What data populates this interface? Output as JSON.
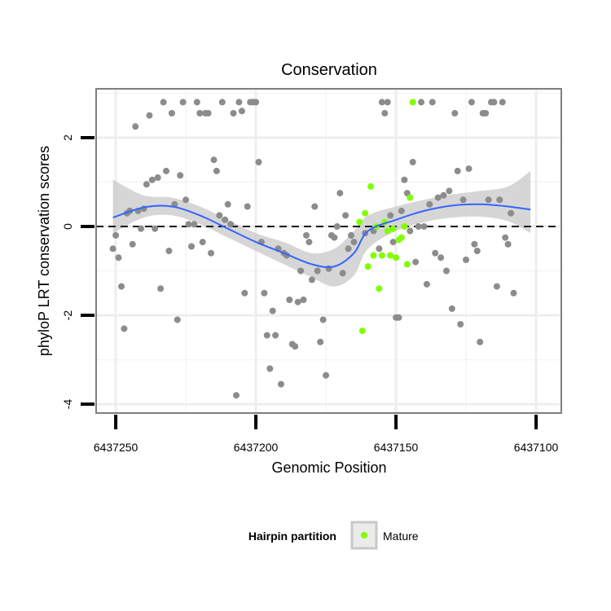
{
  "chart_data": {
    "type": "scatter",
    "title": "Conservation",
    "xlabel": "Genomic Position",
    "ylabel": "phyloP LRT conservation scores",
    "x_reversed": true,
    "xlim": [
      6437257,
      6437091
    ],
    "ylim": [
      -4.2,
      3.1
    ],
    "x_ticks": [
      {
        "value": 6437250,
        "label": "6437250"
      },
      {
        "value": 6437200,
        "label": "6437200"
      },
      {
        "value": 6437150,
        "label": "6437150"
      },
      {
        "value": 6437100,
        "label": "6437100"
      }
    ],
    "y_ticks": [
      {
        "value": 2,
        "label": "2"
      },
      {
        "value": 0,
        "label": "0"
      },
      {
        "value": -2,
        "label": "-2"
      },
      {
        "value": -4,
        "label": "-4"
      }
    ],
    "grid": true,
    "reference_line": {
      "y": 0,
      "style": "dashed",
      "color": "#000000"
    },
    "legend": {
      "title": "Hairpin partition",
      "position": "bottom",
      "entries": [
        {
          "label": "Mature",
          "color": "#7fff00"
        }
      ]
    },
    "colors": {
      "other": "#8c8c8c",
      "mature": "#7fff00",
      "smooth": "#3366ff",
      "ribbon": "#c8c8c8"
    },
    "series": [
      {
        "name": "Other",
        "points": [
          [
            6437251,
            -0.5
          ],
          [
            6437250,
            -0.2
          ],
          [
            6437249,
            -0.7
          ],
          [
            6437248,
            -1.35
          ],
          [
            6437247,
            -2.3
          ],
          [
            6437246,
            0.3
          ],
          [
            6437245,
            0.35
          ],
          [
            6437244,
            -0.4
          ],
          [
            6437243,
            2.25
          ],
          [
            6437242,
            0.35
          ],
          [
            6437241,
            -0.05
          ],
          [
            6437240,
            0.4
          ],
          [
            6437239,
            0.95
          ],
          [
            6437238,
            2.5
          ],
          [
            6437237,
            1.05
          ],
          [
            6437236,
            -0.05
          ],
          [
            6437235,
            1.1
          ],
          [
            6437234,
            -1.4
          ],
          [
            6437233,
            2.8
          ],
          [
            6437232,
            1.25
          ],
          [
            6437231,
            -0.55
          ],
          [
            6437230,
            2.55
          ],
          [
            6437229,
            0.5
          ],
          [
            6437228,
            -2.1
          ],
          [
            6437227,
            1.15
          ],
          [
            6437226,
            2.8
          ],
          [
            6437225,
            0.6
          ],
          [
            6437224,
            0.05
          ],
          [
            6437223,
            -0.45
          ],
          [
            6437222,
            0.05
          ],
          [
            6437221,
            2.8
          ],
          [
            6437220,
            2.55
          ],
          [
            6437219,
            -0.35
          ],
          [
            6437218,
            2.55
          ],
          [
            6437217,
            2.55
          ],
          [
            6437216,
            -0.6
          ],
          [
            6437215,
            1.5
          ],
          [
            6437214,
            1.25
          ],
          [
            6437213,
            0.25
          ],
          [
            6437212,
            2.8
          ],
          [
            6437211,
            0.15
          ],
          [
            6437210,
            0.5
          ],
          [
            6437209,
            0.05
          ],
          [
            6437208,
            2.55
          ],
          [
            6437207,
            -3.8
          ],
          [
            6437206,
            2.8
          ],
          [
            6437205,
            2.6
          ],
          [
            6437204,
            -1.5
          ],
          [
            6437203,
            0.45
          ],
          [
            6437202,
            2.8
          ],
          [
            6437201,
            2.8
          ],
          [
            6437200,
            2.8
          ],
          [
            6437199,
            1.45
          ],
          [
            6437198,
            -0.35
          ],
          [
            6437197,
            -1.5
          ],
          [
            6437196,
            -2.45
          ],
          [
            6437195,
            -3.2
          ],
          [
            6437194,
            -1.9
          ],
          [
            6437193,
            -2.45
          ],
          [
            6437192,
            -0.5
          ],
          [
            6437191,
            -3.55
          ],
          [
            6437190,
            -0.6
          ],
          [
            6437189,
            -0.65
          ],
          [
            6437188,
            -1.65
          ],
          [
            6437187,
            -2.65
          ],
          [
            6437186,
            -2.7
          ],
          [
            6437185,
            -1.7
          ],
          [
            6437184,
            -1.0
          ],
          [
            6437183,
            -1.65
          ],
          [
            6437182,
            -0.2
          ],
          [
            6437181,
            -0.35
          ],
          [
            6437180,
            -1.2
          ],
          [
            6437179,
            0.45
          ],
          [
            6437178,
            -1.0
          ],
          [
            6437177,
            -2.6
          ],
          [
            6437176,
            -2.1
          ],
          [
            6437175,
            -3.35
          ],
          [
            6437174,
            -0.95
          ],
          [
            6437173,
            -0.2
          ],
          [
            6437172,
            -0.25
          ],
          [
            6437171,
            0.0
          ],
          [
            6437170,
            0.75
          ],
          [
            6437169,
            -1.05
          ],
          [
            6437168,
            0.25
          ],
          [
            6437167,
            -0.5
          ],
          [
            6437166,
            -0.2
          ],
          [
            6437165,
            -0.35
          ],
          [
            6437161,
            -0.15
          ],
          [
            6437158,
            -0.1
          ],
          [
            6437156,
            -0.5
          ],
          [
            6437155,
            2.8
          ],
          [
            6437154,
            2.55
          ],
          [
            6437153,
            2.8
          ],
          [
            6437152,
            0.25
          ],
          [
            6437151,
            -0.35
          ],
          [
            6437150,
            -2.05
          ],
          [
            6437149,
            -2.05
          ],
          [
            6437148,
            0.35
          ],
          [
            6437147,
            1.05
          ],
          [
            6437146,
            0.75
          ],
          [
            6437145,
            -0.1
          ],
          [
            6437144,
            1.45
          ],
          [
            6437143,
            -0.8
          ],
          [
            6437142,
            0.0
          ],
          [
            6437141,
            2.8
          ],
          [
            6437140,
            0.0
          ],
          [
            6437139,
            -1.3
          ],
          [
            6437138,
            0.5
          ],
          [
            6437137,
            2.8
          ],
          [
            6437136,
            -0.6
          ],
          [
            6437135,
            0.65
          ],
          [
            6437134,
            -0.7
          ],
          [
            6437133,
            0.7
          ],
          [
            6437132,
            -1.0
          ],
          [
            6437131,
            0.8
          ],
          [
            6437130,
            -1.85
          ],
          [
            6437129,
            2.55
          ],
          [
            6437128,
            1.25
          ],
          [
            6437127,
            -2.2
          ],
          [
            6437126,
            0.6
          ],
          [
            6437125,
            -0.75
          ],
          [
            6437124,
            1.3
          ],
          [
            6437123,
            2.8
          ],
          [
            6437122,
            -0.4
          ],
          [
            6437121,
            -0.55
          ],
          [
            6437120,
            -2.6
          ],
          [
            6437119,
            2.55
          ],
          [
            6437118,
            2.55
          ],
          [
            6437117,
            0.6
          ],
          [
            6437116,
            2.8
          ],
          [
            6437115,
            2.8
          ],
          [
            6437114,
            -1.35
          ],
          [
            6437113,
            0.6
          ],
          [
            6437112,
            2.8
          ],
          [
            6437111,
            -0.25
          ],
          [
            6437110,
            -0.4
          ],
          [
            6437109,
            0.3
          ],
          [
            6437108,
            -1.5
          ]
        ]
      },
      {
        "name": "Mature",
        "points": [
          [
            6437163,
            0.1
          ],
          [
            6437162,
            -2.35
          ],
          [
            6437161,
            0.3
          ],
          [
            6437160,
            -0.9
          ],
          [
            6437159,
            0.9
          ],
          [
            6437158,
            -0.65
          ],
          [
            6437157,
            0.0
          ],
          [
            6437156,
            -1.4
          ],
          [
            6437155,
            -0.65
          ],
          [
            6437154,
            0.1
          ],
          [
            6437153,
            -0.1
          ],
          [
            6437152,
            -0.65
          ],
          [
            6437151,
            -0.05
          ],
          [
            6437150,
            -0.7
          ],
          [
            6437149,
            -0.3
          ],
          [
            6437148,
            -0.25
          ],
          [
            6437147,
            0.0
          ],
          [
            6437146,
            -0.85
          ],
          [
            6437145,
            0.65
          ],
          [
            6437144,
            2.8
          ]
        ]
      }
    ],
    "smooth": {
      "x": [
        6437251,
        6437240,
        6437230,
        6437220,
        6437210,
        6437200,
        6437190,
        6437180,
        6437172,
        6437165,
        6437160,
        6437150,
        6437140,
        6437130,
        6437120,
        6437110,
        6437102
      ],
      "y": [
        0.2,
        0.43,
        0.45,
        0.25,
        -0.05,
        -0.35,
        -0.6,
        -0.85,
        -0.9,
        -0.6,
        -0.1,
        0.15,
        0.35,
        0.47,
        0.5,
        0.45,
        0.38
      ],
      "lower": [
        -0.15,
        0.2,
        0.25,
        0.05,
        -0.25,
        -0.55,
        -0.85,
        -1.15,
        -1.35,
        -1.1,
        -0.5,
        -0.1,
        0.1,
        0.2,
        0.22,
        0.12,
        -0.15
      ],
      "upper": [
        1.05,
        0.7,
        0.65,
        0.45,
        0.15,
        -0.15,
        -0.35,
        -0.6,
        -0.5,
        -0.1,
        0.25,
        0.45,
        0.6,
        0.72,
        0.8,
        0.9,
        1.25
      ]
    }
  }
}
